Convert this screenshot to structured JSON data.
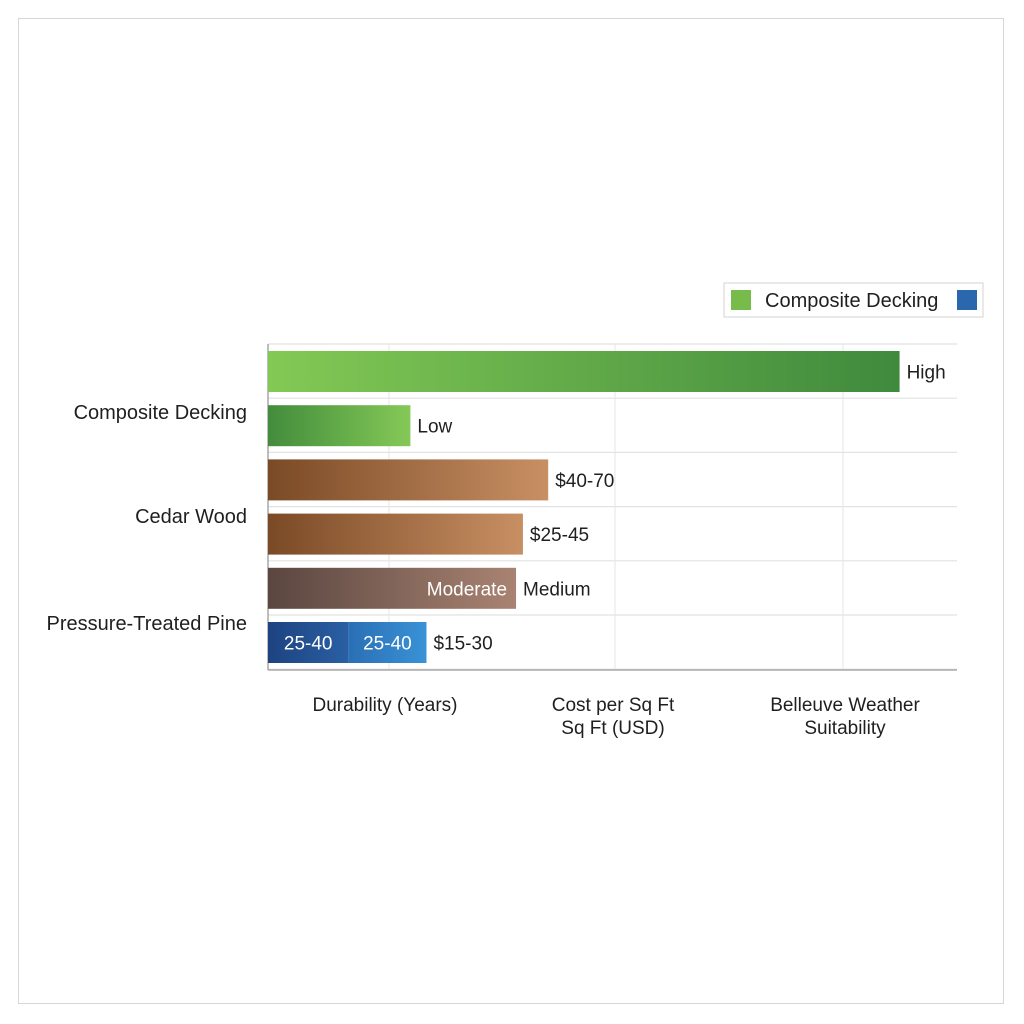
{
  "chart_data": {
    "type": "bar",
    "orientation": "horizontal",
    "title": "",
    "legend": {
      "label": "Composite Decking",
      "position": "top-right",
      "swatch_colors": [
        "#77bb4a",
        "#2a67ad"
      ]
    },
    "categories": [
      "Composite Decking",
      "Cedar Wood",
      "Pressure-Treated Pine"
    ],
    "x_labels": [
      "Durability (Years)",
      "Cost per Sq Ft\nSq Ft (USD)",
      "Belleuve Weather\nSuitability"
    ],
    "bars": [
      {
        "category": "Composite Decking",
        "extent": 2.75,
        "label": "High",
        "gradient": [
          "#83c955",
          "#3f8a3d"
        ]
      },
      {
        "category": "Composite Decking",
        "extent": 0.62,
        "label": "Low",
        "gradient": [
          "#438c3c",
          "#84c957"
        ]
      },
      {
        "category": "Cedar Wood",
        "extent": 1.22,
        "label": "$40-70",
        "gradient": [
          "#7a4a26",
          "#c88f63"
        ]
      },
      {
        "category": "Cedar Wood",
        "extent": 1.11,
        "label": "$25-45",
        "gradient": [
          "#7a4a26",
          "#c88f63"
        ]
      },
      {
        "category": "Pressure-Treated Pine",
        "extent": 1.08,
        "label": "Medium",
        "inner_label": "Moderate",
        "gradient": [
          "#5a4640",
          "#a98372"
        ]
      },
      {
        "category": "Pressure-Treated Pine",
        "extent": 0.69,
        "label": "$15-30",
        "segments": [
          {
            "label": "25-40",
            "extent": 0.35,
            "gradient": [
              "#1d4380",
              "#2a5fa4"
            ]
          },
          {
            "label": "25-40",
            "extent": 0.34,
            "gradient": [
              "#2a6fb5",
              "#3a92d6"
            ]
          }
        ]
      }
    ],
    "xlim": [
      0,
      3
    ],
    "grid": true
  }
}
